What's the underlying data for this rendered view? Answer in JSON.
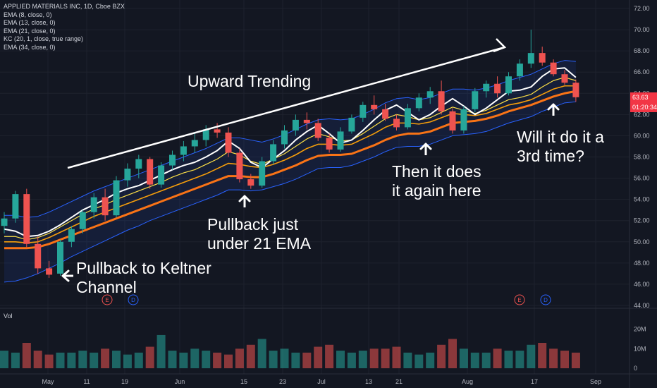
{
  "legend": {
    "symbol": "APPLIED MATERIALS INC, 1D, Cboe BZX",
    "items": [
      "EMA (8, close, 0)",
      "EMA (13, close, 0)",
      "EMA (21, close, 0)",
      "KC (20, 1, close, true range)",
      "EMA (34, close, 0)"
    ]
  },
  "volume_label": "Vol",
  "price_tags": {
    "last": "63.63",
    "countdown": "01:20:34"
  },
  "annotations": {
    "trend": "Upward Trending",
    "pullback1": [
      "Pullback to Keltner",
      "Channel"
    ],
    "pullback2": [
      "Pullback just",
      "under 21 EMA"
    ],
    "pullback3": [
      "Then it does",
      "it again here"
    ],
    "question": [
      "Will it do it a",
      "3rd time?"
    ]
  },
  "earnings_markers": [
    {
      "label": "E",
      "date": "May 13"
    },
    {
      "label": "D",
      "date": "May 19"
    },
    {
      "label": "E",
      "date": "Aug 13"
    },
    {
      "label": "D",
      "date": "Aug 19"
    }
  ],
  "colors": {
    "background": "#131722",
    "up": "#26a69a",
    "down": "#ef5350",
    "ema8": "#ffffff",
    "ema13": "#fde047",
    "ema21": "#f59e0b",
    "ema34": "#f97316",
    "keltner": "#2962ff",
    "annotation": "#ffffff"
  },
  "chart_data": {
    "type": "candlestick",
    "title": "APPLIED MATERIALS INC, 1D, Cboe BZX",
    "x_ticks": [
      "May",
      "11",
      "19",
      "Jun",
      "15",
      "23",
      "Jul",
      "13",
      "21",
      "Aug",
      "17",
      "Sep"
    ],
    "y_ticks": [
      "72.00",
      "70.00",
      "68.00",
      "66.00",
      "64.00",
      "62.00",
      "60.00",
      "58.00",
      "56.00",
      "54.00",
      "52.00",
      "50.00",
      "48.00",
      "46.00",
      "44.00"
    ],
    "ylim": [
      44,
      73
    ],
    "volume_ticks": [
      "20M",
      "10M",
      "0"
    ],
    "volume_ylim": [
      0,
      26
    ],
    "bar_x_ticks": [
      68,
      123,
      177,
      255,
      346,
      401,
      456,
      523,
      566,
      663,
      758,
      845
    ],
    "series": [
      {
        "name": "EMA (8, close, 0)",
        "values": [
          51.2,
          51.0,
          50.5,
          50.6,
          51.0,
          51.6,
          52.3,
          53.0,
          53.5,
          54.0,
          54.6,
          55.0,
          55.3,
          55.8,
          56.3,
          56.8,
          57.2,
          57.5,
          58.0,
          58.6,
          59.5,
          58.8,
          57.5,
          57.0,
          57.8,
          58.6,
          59.6,
          60.4,
          61.0,
          60.2,
          59.3,
          59.6,
          60.5,
          61.5,
          62.4,
          62.9,
          62.2,
          61.5,
          62.0,
          62.8,
          63.5,
          62.8,
          62.0,
          62.6,
          63.4,
          64.2,
          64.3,
          64.6,
          65.6,
          66.3,
          66.4,
          65.5
        ]
      },
      {
        "name": "EMA (13, close, 0)",
        "values": [
          50.5,
          50.5,
          50.2,
          50.4,
          50.8,
          51.4,
          52.0,
          52.6,
          53.1,
          53.5,
          54.0,
          54.4,
          54.8,
          55.2,
          55.6,
          56.1,
          56.5,
          56.8,
          57.3,
          57.8,
          58.5,
          58.2,
          57.6,
          57.3,
          57.8,
          58.3,
          59.0,
          59.7,
          60.2,
          59.9,
          59.5,
          59.6,
          60.2,
          60.9,
          61.6,
          62.0,
          61.8,
          61.5,
          61.7,
          62.2,
          62.7,
          62.4,
          62.1,
          62.4,
          62.9,
          63.4,
          63.6,
          63.9,
          64.6,
          65.2,
          65.5,
          65.2
        ]
      },
      {
        "name": "EMA (21, close, 0)",
        "values": [
          50.0,
          50.0,
          49.9,
          50.0,
          50.4,
          50.9,
          51.4,
          51.9,
          52.4,
          52.8,
          53.2,
          53.6,
          54.0,
          54.4,
          54.8,
          55.2,
          55.6,
          56.0,
          56.4,
          56.9,
          57.4,
          57.3,
          57.1,
          57.0,
          57.3,
          57.7,
          58.2,
          58.8,
          59.2,
          59.2,
          59.1,
          59.2,
          59.7,
          60.2,
          60.8,
          61.2,
          61.2,
          61.1,
          61.3,
          61.7,
          62.1,
          62.0,
          61.9,
          62.1,
          62.5,
          62.9,
          63.1,
          63.4,
          63.9,
          64.4,
          64.7,
          64.7
        ]
      },
      {
        "name": "EMA (34, close, 0)",
        "values": [
          49.4,
          49.4,
          49.4,
          49.5,
          49.8,
          50.2,
          50.6,
          51.0,
          51.4,
          51.8,
          52.2,
          52.6,
          53.0,
          53.4,
          53.8,
          54.2,
          54.6,
          55.0,
          55.4,
          55.8,
          56.2,
          56.2,
          56.1,
          56.1,
          56.4,
          56.8,
          57.2,
          57.7,
          58.1,
          58.2,
          58.2,
          58.3,
          58.7,
          59.1,
          59.6,
          60.0,
          60.2,
          60.2,
          60.4,
          60.8,
          61.2,
          61.3,
          61.4,
          61.6,
          61.9,
          62.3,
          62.6,
          62.9,
          63.3,
          63.7,
          64.0,
          64.2
        ]
      },
      {
        "name": "KC (20, 1, close, true range)",
        "upper": [
          52.5,
          52.5,
          52.3,
          52.4,
          52.8,
          53.3,
          53.8,
          54.3,
          54.8,
          55.2,
          55.6,
          56.0,
          56.4,
          56.8,
          57.2,
          57.6,
          58.0,
          58.4,
          58.8,
          59.3,
          59.8,
          59.8,
          59.6,
          59.4,
          59.7,
          60.1,
          60.6,
          61.1,
          61.5,
          61.6,
          61.5,
          61.6,
          62.0,
          62.5,
          63.1,
          63.5,
          63.6,
          63.4,
          63.6,
          64.0,
          64.4,
          64.4,
          64.3,
          64.5,
          64.8,
          65.2,
          65.5,
          65.8,
          66.3,
          66.8,
          67.1,
          67.0
        ],
        "lower": [
          46.2,
          46.3,
          46.6,
          47.0,
          47.5,
          48.0,
          48.6,
          49.1,
          49.6,
          50.1,
          50.6,
          51.1,
          51.5,
          52.0,
          52.4,
          52.8,
          53.2,
          53.6,
          54.0,
          54.4,
          54.9,
          54.9,
          54.8,
          54.9,
          55.2,
          55.5,
          55.9,
          56.4,
          56.9,
          57.0,
          57.0,
          57.2,
          57.6,
          58.0,
          58.5,
          58.9,
          59.0,
          59.0,
          59.2,
          59.6,
          60.0,
          60.1,
          60.2,
          60.4,
          60.8,
          61.2,
          61.5,
          61.8,
          62.3,
          62.7,
          63.1,
          63.2
        ]
      }
    ],
    "candles": [
      {
        "o": 51.5,
        "h": 52.8,
        "l": 50.8,
        "c": 52.2
      },
      {
        "o": 52.2,
        "h": 54.8,
        "l": 51.8,
        "c": 54.5
      },
      {
        "o": 54.5,
        "h": 55.0,
        "l": 49.5,
        "c": 49.8
      },
      {
        "o": 49.8,
        "h": 50.5,
        "l": 47.0,
        "c": 47.5
      },
      {
        "o": 47.5,
        "h": 48.2,
        "l": 46.6,
        "c": 46.9
      },
      {
        "o": 47.0,
        "h": 50.2,
        "l": 46.8,
        "c": 50.0
      },
      {
        "o": 50.0,
        "h": 51.5,
        "l": 49.5,
        "c": 51.2
      },
      {
        "o": 51.2,
        "h": 53.0,
        "l": 50.8,
        "c": 52.8
      },
      {
        "o": 52.8,
        "h": 54.6,
        "l": 52.2,
        "c": 54.2
      },
      {
        "o": 54.2,
        "h": 55.0,
        "l": 52.0,
        "c": 52.5
      },
      {
        "o": 52.5,
        "h": 56.2,
        "l": 52.3,
        "c": 55.8
      },
      {
        "o": 55.8,
        "h": 57.4,
        "l": 55.2,
        "c": 56.9
      },
      {
        "o": 56.9,
        "h": 58.2,
        "l": 56.0,
        "c": 57.8
      },
      {
        "o": 57.8,
        "h": 58.0,
        "l": 55.0,
        "c": 55.4
      },
      {
        "o": 55.4,
        "h": 57.5,
        "l": 55.1,
        "c": 57.2
      },
      {
        "o": 57.2,
        "h": 58.6,
        "l": 56.8,
        "c": 58.2
      },
      {
        "o": 58.2,
        "h": 59.5,
        "l": 57.6,
        "c": 59.0
      },
      {
        "o": 59.0,
        "h": 60.2,
        "l": 58.4,
        "c": 59.6
      },
      {
        "o": 59.6,
        "h": 61.0,
        "l": 59.0,
        "c": 60.6
      },
      {
        "o": 60.6,
        "h": 61.2,
        "l": 59.8,
        "c": 60.3
      },
      {
        "o": 60.3,
        "h": 60.8,
        "l": 58.0,
        "c": 58.4
      },
      {
        "o": 58.4,
        "h": 58.8,
        "l": 55.6,
        "c": 55.9
      },
      {
        "o": 55.9,
        "h": 56.4,
        "l": 55.0,
        "c": 55.3
      },
      {
        "o": 55.3,
        "h": 58.0,
        "l": 55.1,
        "c": 57.6
      },
      {
        "o": 57.6,
        "h": 59.6,
        "l": 57.3,
        "c": 59.2
      },
      {
        "o": 59.2,
        "h": 61.0,
        "l": 58.8,
        "c": 60.5
      },
      {
        "o": 60.5,
        "h": 62.0,
        "l": 60.0,
        "c": 61.5
      },
      {
        "o": 61.5,
        "h": 62.2,
        "l": 60.6,
        "c": 61.2
      },
      {
        "o": 61.2,
        "h": 61.6,
        "l": 59.5,
        "c": 59.8
      },
      {
        "o": 59.8,
        "h": 60.2,
        "l": 58.4,
        "c": 58.7
      },
      {
        "o": 58.7,
        "h": 60.8,
        "l": 58.5,
        "c": 60.4
      },
      {
        "o": 60.4,
        "h": 62.0,
        "l": 60.2,
        "c": 61.7
      },
      {
        "o": 61.7,
        "h": 63.2,
        "l": 61.3,
        "c": 62.9
      },
      {
        "o": 62.9,
        "h": 63.8,
        "l": 62.0,
        "c": 62.5
      },
      {
        "o": 62.5,
        "h": 63.0,
        "l": 61.4,
        "c": 61.6
      },
      {
        "o": 61.6,
        "h": 62.0,
        "l": 60.5,
        "c": 60.8
      },
      {
        "o": 60.8,
        "h": 63.0,
        "l": 60.6,
        "c": 62.6
      },
      {
        "o": 62.6,
        "h": 64.0,
        "l": 62.3,
        "c": 63.6
      },
      {
        "o": 63.6,
        "h": 64.6,
        "l": 63.0,
        "c": 64.2
      },
      {
        "o": 64.2,
        "h": 65.2,
        "l": 62.0,
        "c": 62.3
      },
      {
        "o": 62.3,
        "h": 62.6,
        "l": 60.2,
        "c": 60.5
      },
      {
        "o": 60.5,
        "h": 62.8,
        "l": 60.2,
        "c": 62.5
      },
      {
        "o": 62.5,
        "h": 64.5,
        "l": 62.2,
        "c": 64.2
      },
      {
        "o": 64.2,
        "h": 65.2,
        "l": 63.6,
        "c": 64.9
      },
      {
        "o": 64.9,
        "h": 65.6,
        "l": 63.6,
        "c": 64.0
      },
      {
        "o": 64.0,
        "h": 66.0,
        "l": 63.8,
        "c": 65.6
      },
      {
        "o": 65.6,
        "h": 67.2,
        "l": 65.2,
        "c": 66.8
      },
      {
        "o": 66.8,
        "h": 70.0,
        "l": 66.4,
        "c": 67.8
      },
      {
        "o": 67.8,
        "h": 68.4,
        "l": 66.6,
        "c": 66.9
      },
      {
        "o": 66.9,
        "h": 67.2,
        "l": 65.6,
        "c": 65.8
      },
      {
        "o": 65.8,
        "h": 66.2,
        "l": 64.8,
        "c": 65.0
      },
      {
        "o": 65.0,
        "h": 65.3,
        "l": 63.2,
        "c": 63.63
      }
    ],
    "volume": [
      9,
      8,
      13,
      9,
      7,
      8,
      8,
      9,
      8,
      10,
      9,
      7,
      8,
      11,
      17,
      9,
      8,
      10,
      9,
      8,
      7,
      10,
      12,
      15,
      9,
      10,
      8,
      8,
      11,
      12,
      9,
      8,
      9,
      10,
      10,
      11,
      8,
      7,
      8,
      12,
      15,
      10,
      8,
      8,
      10,
      9,
      9,
      12,
      13,
      10,
      9,
      8
    ]
  }
}
